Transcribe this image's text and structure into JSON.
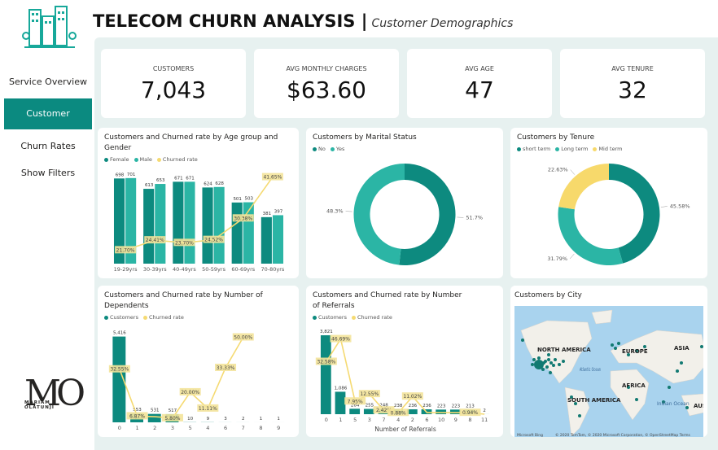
{
  "header": {
    "title": "TELECOM CHURN ANALYSIS |",
    "subtitle": "Customer Demographics"
  },
  "nav": [
    {
      "label": "Service Overview",
      "active": false
    },
    {
      "label": "Customer",
      "active": true
    },
    {
      "label": "Churn Rates",
      "active": false
    },
    {
      "label": "Show Filters",
      "active": false
    }
  ],
  "logo": {
    "mark": "MO",
    "name": [
      "MARIAM",
      "OLATUNJI"
    ]
  },
  "kpis": [
    {
      "label": "CUSTOMERS",
      "value": "7,043"
    },
    {
      "label": "AVG MONTHLY CHARGES",
      "value": "$63.60"
    },
    {
      "label": "AVG AGE",
      "value": "47"
    },
    {
      "label": "AVG TENURE",
      "value": "32"
    }
  ],
  "chart_data": [
    {
      "type": "combo",
      "title": "Customers and Churned rate by Age group and Gender",
      "categories": [
        "19-29yrs",
        "30-39yrs",
        "40-49yrs",
        "50-59yrs",
        "60-69yrs",
        "70-80yrs"
      ],
      "series": [
        {
          "name": "Female",
          "color": "#0d8a7f",
          "values": [
            698,
            613,
            671,
            624,
            501,
            381
          ]
        },
        {
          "name": "Male",
          "color": "#2bb5a5",
          "values": [
            701,
            653,
            671,
            628,
            503,
            397
          ]
        },
        {
          "name": "Churned rate",
          "color": "#f5da72",
          "axis": "y2",
          "values": [
            21.7,
            24.41,
            23.7,
            24.52,
            30.38,
            41.65
          ],
          "value_labels": [
            "21.70%",
            "24.41%",
            "23.70%",
            "24.52%",
            "30.38%",
            "41.65%"
          ]
        }
      ],
      "ylim": [
        0,
        720
      ],
      "y2lim": [
        18,
        42
      ]
    },
    {
      "type": "donut",
      "title": "Customers by Marital Status",
      "categories": [
        "No",
        "Yes"
      ],
      "values": [
        51.7,
        48.3
      ],
      "value_labels": [
        "51.7%",
        "48.3%"
      ],
      "colors": [
        "#0d8a7f",
        "#2bb5a5"
      ]
    },
    {
      "type": "donut",
      "title": "Customers by Tenure",
      "categories": [
        "short term",
        "Long term",
        "Mid term"
      ],
      "values": [
        45.58,
        31.79,
        22.63
      ],
      "value_labels": [
        "45.58%",
        "31.79%",
        "22.63%"
      ],
      "colors": [
        "#0d8a7f",
        "#2bb5a5",
        "#f7d96b"
      ]
    },
    {
      "type": "combo",
      "title": "Customers and Churned rate by Number of Dependents",
      "categories": [
        "0",
        "1",
        "2",
        "3",
        "5",
        "4",
        "6",
        "7",
        "8",
        "9"
      ],
      "series": [
        {
          "name": "Customers",
          "color": "#0d8a7f",
          "values": [
            5416,
            553,
            531,
            517,
            10,
            9,
            3,
            2,
            1,
            1
          ],
          "value_labels": [
            "5,416",
            "553",
            "531",
            "517",
            "10",
            "9",
            "3",
            "2",
            "1",
            "1"
          ]
        },
        {
          "name": "Churned rate",
          "color": "#f5da72",
          "axis": "y2",
          "values": [
            32.55,
            6.87,
            6.6,
            5.8,
            20.0,
            11.11,
            33.33,
            50.0,
            null,
            null
          ],
          "value_labels": [
            "32.55%",
            "6.87%",
            null,
            "5.80%",
            "20.00%",
            "11.11%",
            "33.33%",
            "50.00%",
            null,
            null
          ]
        }
      ],
      "ylim": [
        0,
        5600
      ],
      "y2lim": [
        3.5,
        52
      ]
    },
    {
      "type": "combo",
      "title": "Customers and Churned rate by Number of Referrals",
      "xlabel": "Number of Referrals",
      "categories": [
        "0",
        "1",
        "5",
        "3",
        "7",
        "4",
        "2",
        "6",
        "10",
        "9",
        "8",
        "11"
      ],
      "series": [
        {
          "name": "Customers",
          "color": "#0d8a7f",
          "values": [
            3821,
            1086,
            264,
            255,
            248,
            238,
            236,
            236,
            223,
            223,
            213,
            2
          ],
          "value_labels": [
            "3,821",
            "1,086",
            "264",
            "255",
            "248",
            "238",
            "236",
            "236",
            "223",
            "223",
            "213",
            "2"
          ]
        },
        {
          "name": "Churned rate",
          "color": "#f5da72",
          "axis": "y2",
          "values": [
            32.58,
            46.69,
            7.95,
            12.55,
            2.42,
            0.88,
            11.02,
            1.0,
            1.0,
            1.0,
            0.94,
            0
          ],
          "value_labels": [
            "32.58%",
            "46.69%",
            "7.95%",
            "12.55%",
            "2.42%",
            "0.88%",
            "11.02%",
            null,
            null,
            null,
            "0.94%",
            null
          ]
        }
      ],
      "ylim": [
        0,
        3900
      ],
      "y2lim": [
        0,
        50
      ]
    },
    {
      "type": "map",
      "title": "Customers by City",
      "labels": [
        "NORTH AMERICA",
        "EUROPE",
        "ASIA",
        "AFRICA",
        "SOUTH AMERICA",
        "Atlantic Ocean",
        "Indian Ocean",
        "AUSTR"
      ],
      "attribution": [
        "Microsoft Bing",
        "© 2020 TomTom, © 2020 Microsoft Corporation, © OpenStreetMap  Terms"
      ]
    }
  ]
}
